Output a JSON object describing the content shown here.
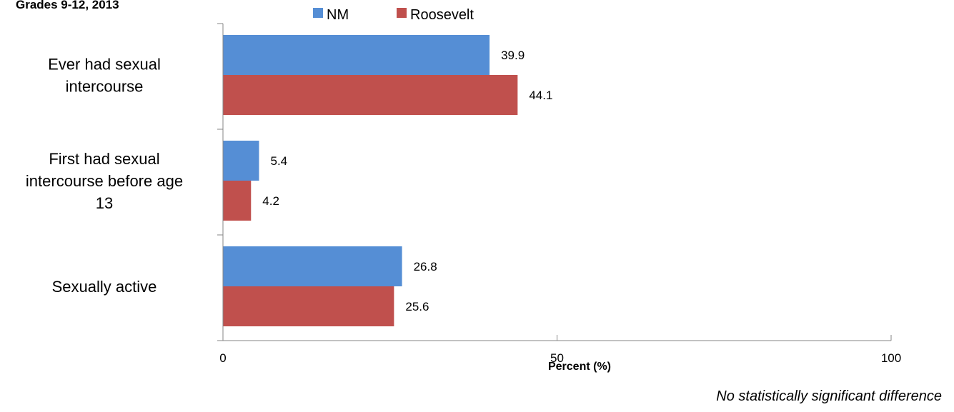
{
  "chart_data": {
    "type": "bar",
    "orientation": "horizontal",
    "subtitle": "Grades 9-12, 2013",
    "categories": [
      [
        "Ever had sexual",
        "intercourse"
      ],
      [
        "First had sexual",
        "intercourse before age",
        "13"
      ],
      [
        "Sexually active"
      ]
    ],
    "series": [
      {
        "name": "NM",
        "color": "#558ED5",
        "values": [
          39.9,
          5.4,
          26.8
        ],
        "labels": [
          "39.9",
          "5.4",
          "26.8"
        ]
      },
      {
        "name": "Roosevelt",
        "color": "#C0504D",
        "values": [
          44.1,
          4.2,
          25.6
        ],
        "labels": [
          "44.1",
          "4.2",
          "25.6"
        ]
      }
    ],
    "xlabel": "Percent (%)",
    "ylabel": "",
    "xlim": [
      0,
      100
    ],
    "xticks": [
      0,
      50,
      100
    ],
    "tick_labels": [
      "0",
      "50",
      "100"
    ],
    "grid": false,
    "legend_position": "top"
  },
  "note": "No statistically significant difference"
}
